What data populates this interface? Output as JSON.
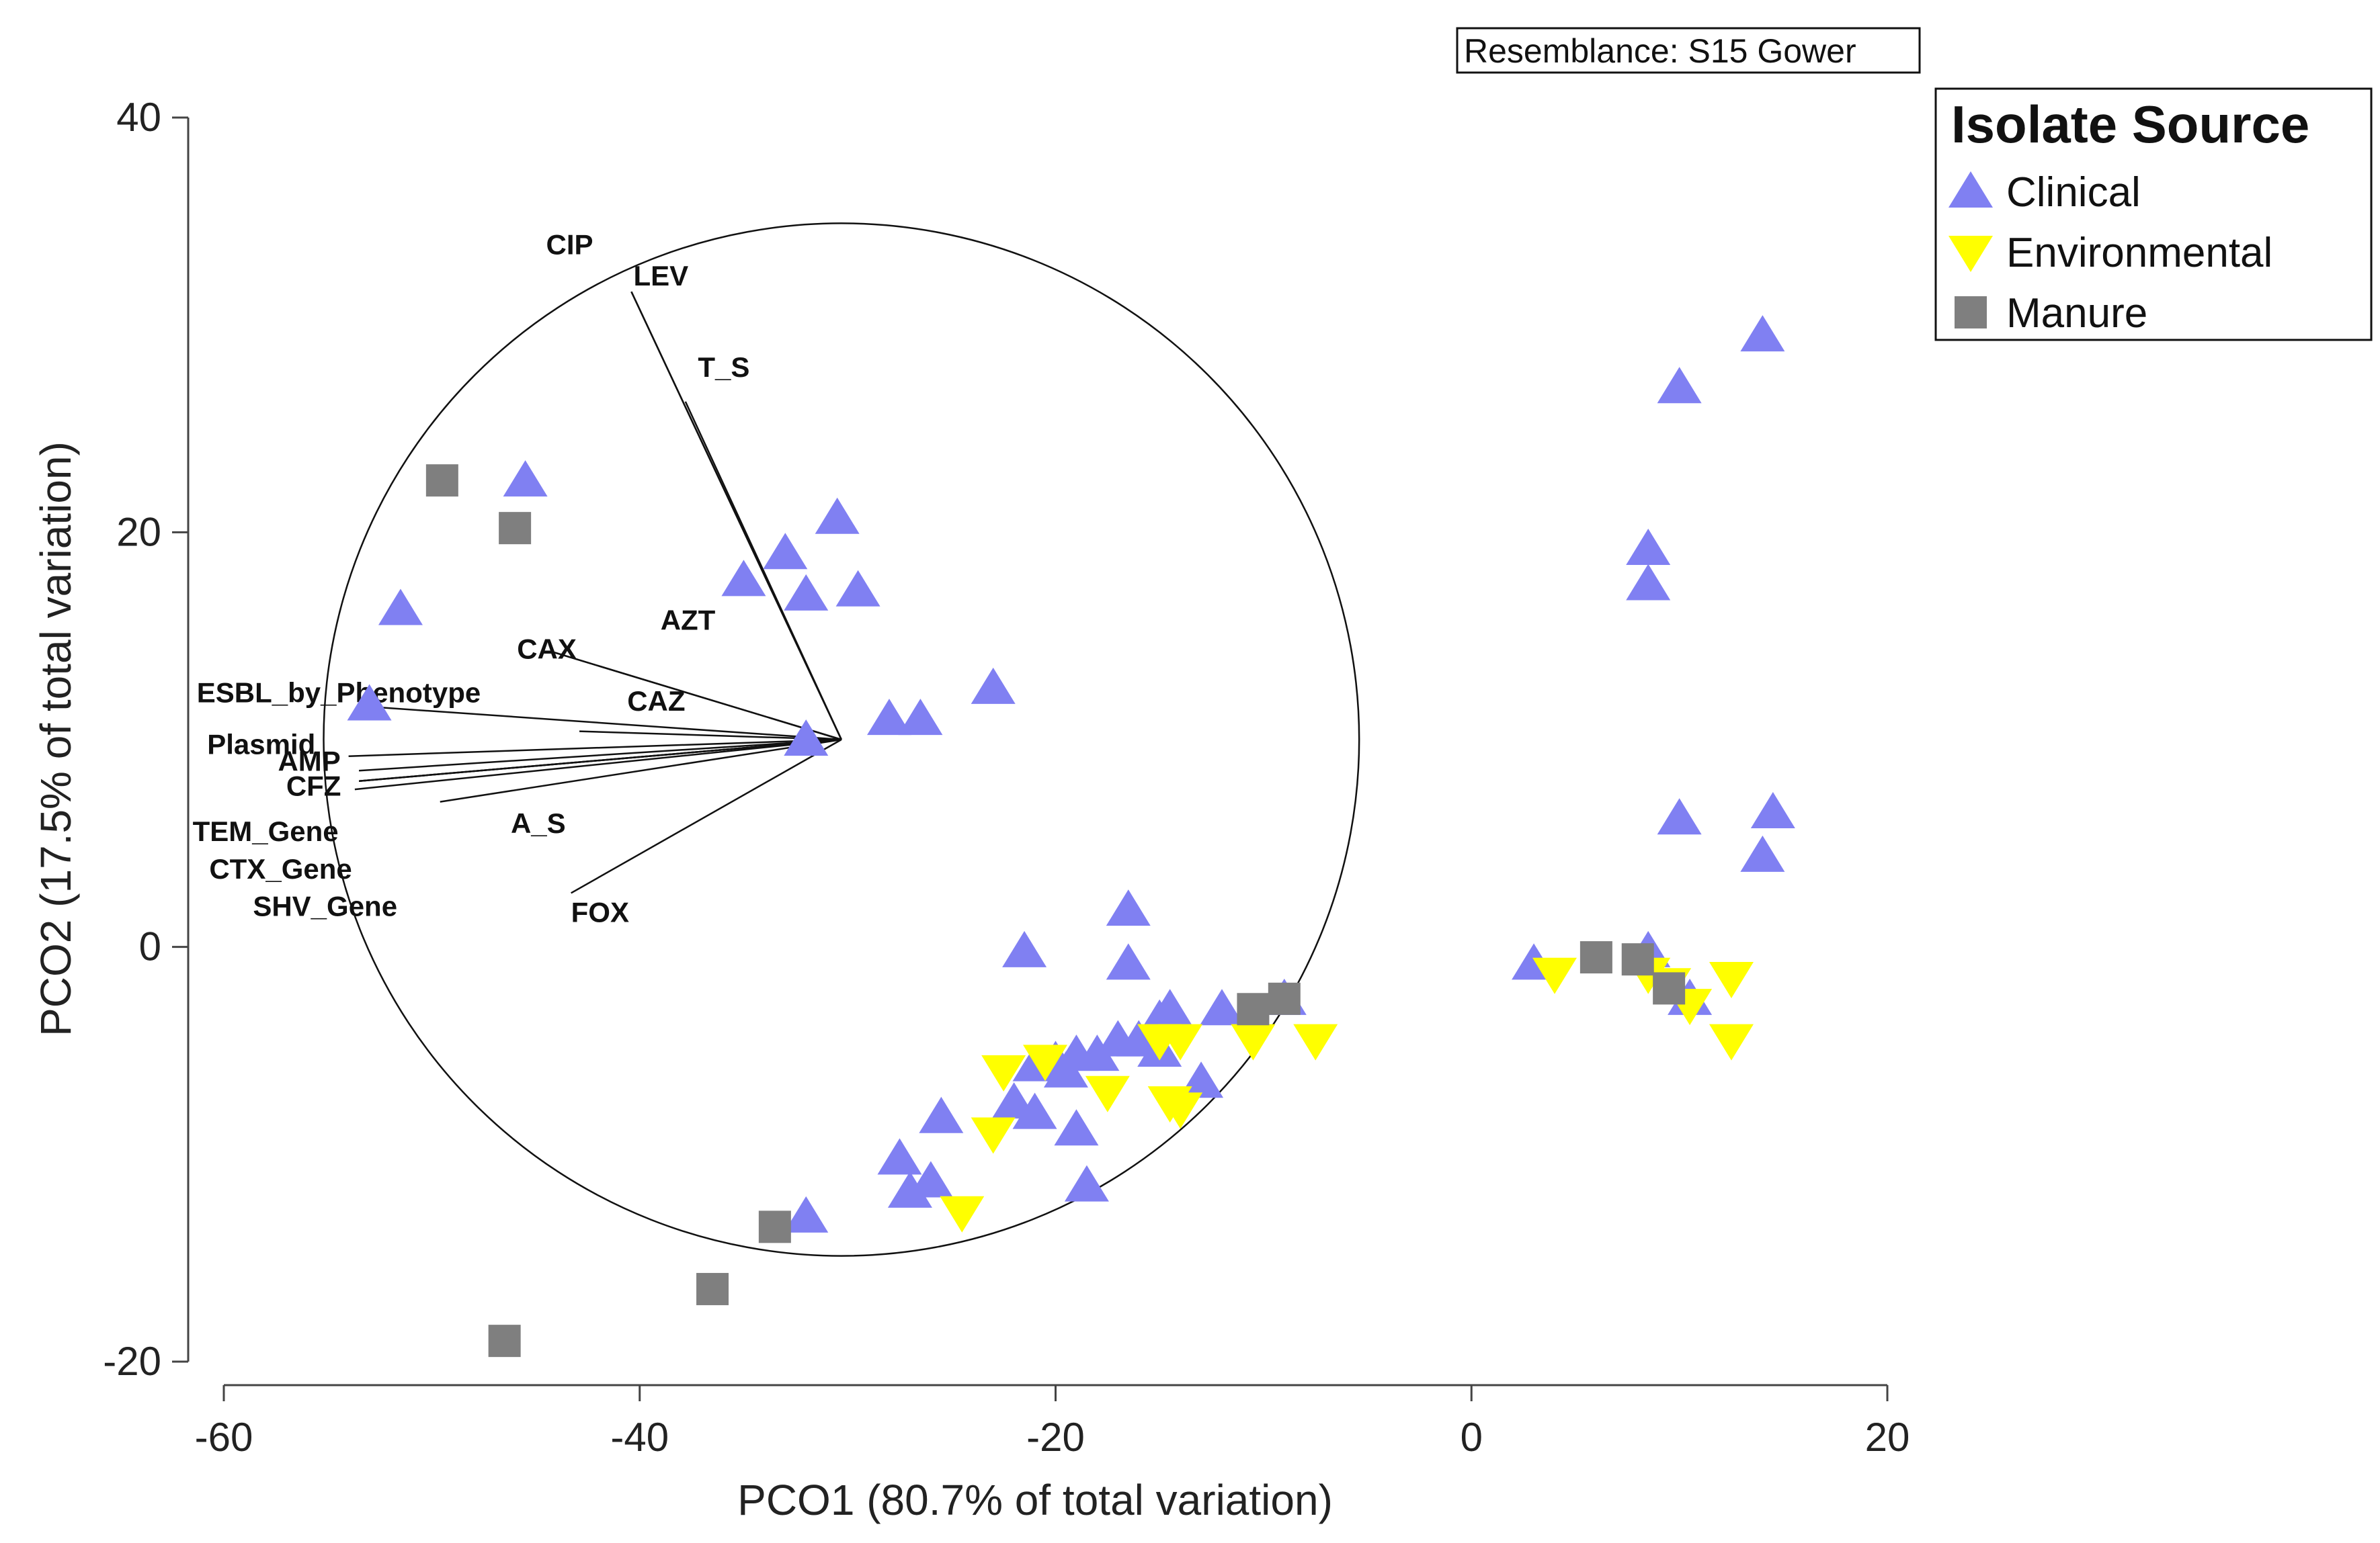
{
  "chart_data": {
    "type": "scatter",
    "title": "",
    "xlabel": "PCO1 (80.7% of total variation)",
    "ylabel": "PCO2 (17.5% of total variation)",
    "xlim": [
      -61.5,
      20
    ],
    "ylim": [
      -21,
      40
    ],
    "xticks": [
      -60,
      -40,
      -20,
      0,
      20
    ],
    "yticks": [
      -20,
      0,
      20,
      40
    ],
    "xtick_labels": [
      "-60",
      "-40",
      "-20",
      "0",
      "20"
    ],
    "ytick_labels": [
      "-20",
      "0",
      "20",
      "40"
    ],
    "annotation": "Resemblance: S15 Gower",
    "legend": {
      "title": "Isolate Source",
      "position": "top-right",
      "entries": [
        "Clinical",
        "Environmental",
        "Manure"
      ]
    },
    "colors": {
      "Clinical": "#8080f2",
      "Environmental": "#ffff00",
      "Manure": "#7f7f7f"
    },
    "markers": {
      "Clinical": "triangle-up",
      "Environmental": "triangle-down",
      "Manure": "square"
    },
    "vector_overlay": {
      "center": [
        -30.3,
        10
      ],
      "radius": 24.9,
      "vectors": [
        {
          "name": "CIP",
          "end": [
            -40.4,
            31.6
          ],
          "label_pos": [
            -44.5,
            33.4
          ]
        },
        {
          "name": "LEV",
          "end": [
            -40.4,
            31.6
          ],
          "label_pos": [
            -40.3,
            31.9
          ]
        },
        {
          "name": "T_S",
          "end": [
            -37.8,
            26.3
          ],
          "label_pos": [
            -37.2,
            27.5
          ]
        },
        {
          "name": "AZT",
          "end": [
            -44.1,
            14.2
          ],
          "label_pos": [
            -39.0,
            15.3
          ]
        },
        {
          "name": "CAX",
          "end": [
            -44.1,
            14.2
          ],
          "label_pos": [
            -45.9,
            13.9
          ]
        },
        {
          "name": "CAZ",
          "end": [
            -42.9,
            10.4
          ],
          "label_pos": [
            -40.6,
            11.4
          ]
        },
        {
          "name": "ESBL_by_Phenotype",
          "end": [
            -53.2,
            11.6
          ],
          "label_pos": [
            -61.3,
            11.8
          ]
        },
        {
          "name": "Plasmid",
          "end": [
            -54.0,
            9.2
          ],
          "label_pos": [
            -60.8,
            9.3
          ]
        },
        {
          "name": "AMP",
          "end": [
            -53.5,
            8.5
          ],
          "label_pos": [
            -57.4,
            8.5
          ]
        },
        {
          "name": "CFZ",
          "end": [
            -53.7,
            7.6
          ],
          "label_pos": [
            -57.0,
            7.3
          ]
        },
        {
          "name": "A_S",
          "end": [
            -49.6,
            7.0
          ],
          "label_pos": [
            -46.2,
            5.5
          ]
        },
        {
          "name": "TEM_Gene",
          "end": [
            -53.5,
            8.0
          ],
          "label_pos": [
            -61.5,
            5.1
          ]
        },
        {
          "name": "CTX_Gene",
          "end": [
            -53.5,
            8.0
          ],
          "label_pos": [
            -60.7,
            3.3
          ]
        },
        {
          "name": "SHV_Gene",
          "end": [
            -53.5,
            8.0
          ],
          "label_pos": [
            -58.6,
            1.5
          ]
        },
        {
          "name": "FOX",
          "end": [
            -43.3,
            2.6
          ],
          "label_pos": [
            -43.3,
            1.2
          ]
        }
      ]
    },
    "series": [
      {
        "name": "Clinical",
        "points": [
          [
            -45.5,
            22.5
          ],
          [
            -51.5,
            16.3
          ],
          [
            -53.0,
            11.7
          ],
          [
            -32.0,
            10.0
          ],
          [
            -33.0,
            19.0
          ],
          [
            -30.5,
            20.7
          ],
          [
            -35.0,
            17.7
          ],
          [
            -32.0,
            17.0
          ],
          [
            -29.5,
            17.2
          ],
          [
            -28.0,
            11.0
          ],
          [
            -26.5,
            11.0
          ],
          [
            -23.0,
            12.5
          ],
          [
            14.0,
            29.5
          ],
          [
            10.0,
            27.0
          ],
          [
            8.5,
            19.2
          ],
          [
            8.5,
            17.5
          ],
          [
            10.0,
            6.2
          ],
          [
            14.5,
            6.5
          ],
          [
            14.0,
            4.4
          ],
          [
            -16.5,
            1.8
          ],
          [
            -16.5,
            -0.8
          ],
          [
            -21.5,
            -0.2
          ],
          [
            -15.0,
            -3.5
          ],
          [
            -14.5,
            -3.0
          ],
          [
            -12.0,
            -3.0
          ],
          [
            -9.0,
            -2.5
          ],
          [
            -17.0,
            -4.5
          ],
          [
            -16.0,
            -4.5
          ],
          [
            -15.0,
            -5.0
          ],
          [
            -18.0,
            -5.2
          ],
          [
            -19.0,
            -5.2
          ],
          [
            -20.0,
            -5.5
          ],
          [
            -21.0,
            -5.7
          ],
          [
            -19.5,
            -6.0
          ],
          [
            -22.0,
            -7.5
          ],
          [
            -21.0,
            -8.0
          ],
          [
            -13.0,
            -6.5
          ],
          [
            -25.5,
            -8.2
          ],
          [
            -19.0,
            -8.8
          ],
          [
            -27.5,
            -10.2
          ],
          [
            -26.0,
            -11.3
          ],
          [
            -27.0,
            -11.8
          ],
          [
            -18.5,
            -11.5
          ],
          [
            -32.0,
            -13.0
          ],
          [
            3.0,
            -0.8
          ],
          [
            8.5,
            -0.2
          ],
          [
            10.5,
            -2.5
          ]
        ]
      },
      {
        "name": "Environmental",
        "points": [
          [
            -22.5,
            -6.0
          ],
          [
            -20.5,
            -5.5
          ],
          [
            -17.5,
            -7.0
          ],
          [
            -15.0,
            -4.5
          ],
          [
            -14.0,
            -4.5
          ],
          [
            -14.5,
            -7.5
          ],
          [
            -14.0,
            -7.8
          ],
          [
            -10.5,
            -4.5
          ],
          [
            -7.5,
            -4.5
          ],
          [
            -23.0,
            -9.0
          ],
          [
            -24.5,
            -12.8
          ],
          [
            4.0,
            -1.3
          ],
          [
            8.5,
            -1.3
          ],
          [
            9.5,
            -1.8
          ],
          [
            10.5,
            -2.8
          ],
          [
            12.5,
            -1.5
          ],
          [
            12.5,
            -4.5
          ]
        ]
      },
      {
        "name": "Manure",
        "points": [
          [
            -49.5,
            22.5
          ],
          [
            -46.0,
            20.2
          ],
          [
            -10.5,
            -3.0
          ],
          [
            -9.0,
            -2.5
          ],
          [
            6.0,
            -0.5
          ],
          [
            8.0,
            -0.6
          ],
          [
            9.5,
            -2.0
          ],
          [
            -33.5,
            -13.5
          ],
          [
            -36.5,
            -16.5
          ],
          [
            -46.5,
            -19.0
          ]
        ]
      }
    ]
  }
}
